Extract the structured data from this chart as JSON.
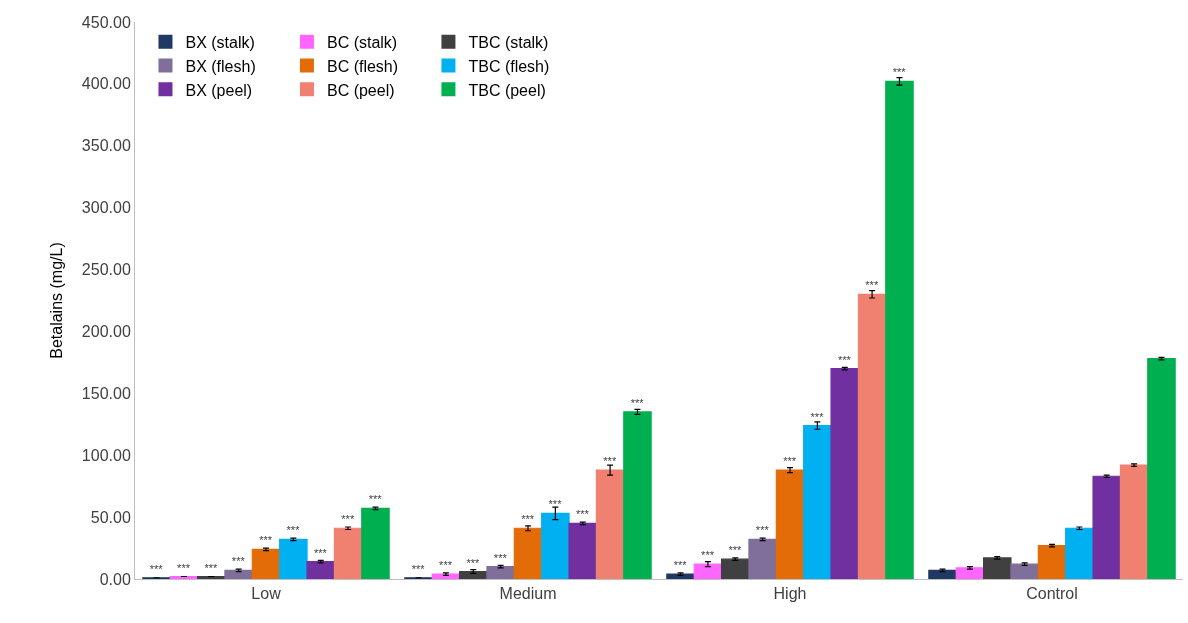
{
  "chart_data": {
    "type": "bar",
    "ylabel": "Betalains (mg/L)",
    "categories": [
      "Low",
      "Medium",
      "High",
      "Control"
    ],
    "ylim": [
      0,
      450
    ],
    "yticks": [
      {
        "value": 0,
        "label": "0.00"
      },
      {
        "value": 50,
        "label": "50.00"
      },
      {
        "value": 100,
        "label": "100.00"
      },
      {
        "value": 150,
        "label": "150.00"
      },
      {
        "value": 200,
        "label": "200.00"
      },
      {
        "value": 250,
        "label": "250.00"
      },
      {
        "value": 300,
        "label": "300.00"
      },
      {
        "value": 350,
        "label": "350.00"
      },
      {
        "value": 400,
        "label": "400.00"
      },
      {
        "value": 450,
        "label": "450.00"
      }
    ],
    "legend": "top left",
    "series": [
      {
        "name": "BX (stalk)",
        "color": "#1f3864",
        "values": [
          1,
          1,
          4,
          7
        ],
        "errors": [
          null,
          null,
          1,
          1
        ],
        "value_labels": [
          "***",
          "***",
          "***",
          null
        ]
      },
      {
        "name": "BC (stalk)",
        "color": "#ff66ff",
        "values": [
          2,
          4,
          12,
          9
        ],
        "errors": [
          null,
          1,
          2,
          1
        ],
        "value_labels": [
          "***",
          "***",
          "***",
          null
        ]
      },
      {
        "name": "TBC (stalk)",
        "color": "#404040",
        "values": [
          2,
          6,
          16,
          17
        ],
        "errors": [
          null,
          1.5,
          1,
          1
        ],
        "value_labels": [
          "***",
          "***",
          "***",
          null
        ]
      },
      {
        "name": "BX (flesh)",
        "color": "#7f6f9a",
        "values": [
          7,
          10,
          32,
          12
        ],
        "errors": [
          1,
          1,
          1,
          1
        ],
        "value_labels": [
          "***",
          "***",
          "***",
          null
        ]
      },
      {
        "name": "BC (flesh)",
        "color": "#e36c09",
        "values": [
          24,
          41,
          88,
          27
        ],
        "errors": [
          1,
          2,
          2,
          1
        ],
        "value_labels": [
          "***",
          "***",
          "***",
          null
        ]
      },
      {
        "name": "TBC (flesh)",
        "color": "#00b0f0",
        "values": [
          32,
          53,
          124,
          41
        ],
        "errors": [
          1,
          5,
          3,
          1
        ],
        "value_labels": [
          "***",
          "***",
          "***",
          null
        ]
      },
      {
        "name": "BX (peel)",
        "color": "#7030a0",
        "values": [
          14,
          45,
          170,
          83
        ],
        "errors": [
          1,
          1,
          1,
          1
        ],
        "value_labels": [
          "***",
          "***",
          "***",
          null
        ]
      },
      {
        "name": "BC (peel)",
        "color": "#f08070",
        "values": [
          41,
          88,
          230,
          92
        ],
        "errors": [
          1,
          4,
          3,
          1
        ],
        "value_labels": [
          "***",
          "***",
          "***",
          null
        ]
      },
      {
        "name": "TBC (peel)",
        "color": "#00b050",
        "values": [
          57,
          135,
          402,
          178
        ],
        "errors": [
          1,
          2,
          3,
          1
        ],
        "value_labels": [
          "***",
          "***",
          "***",
          null
        ]
      }
    ]
  }
}
